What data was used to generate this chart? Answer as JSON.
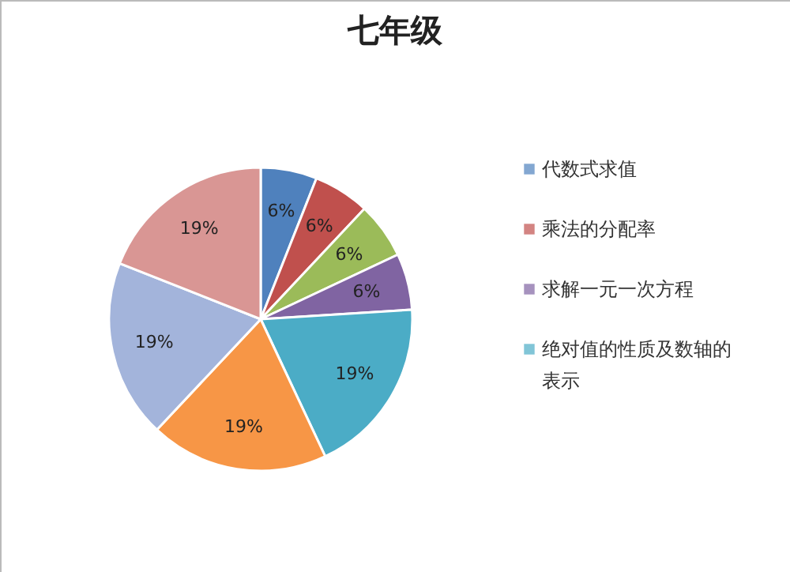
{
  "chart_data": {
    "type": "pie",
    "title": "七年级",
    "categories": [
      "代数式求值",
      "乘法的分配率",
      null,
      "求解一元一次方程",
      "绝对值的性质及数轴的表示",
      null,
      null,
      null
    ],
    "values": [
      6,
      6,
      6,
      6,
      19,
      19,
      19,
      19
    ],
    "colors": [
      "#4f81bd",
      "#c0504d",
      "#9bbb59",
      "#8064a2",
      "#4bacc6",
      "#f79646",
      "#a3b4db",
      "#d99694"
    ],
    "value_labels": [
      "6%",
      "6%",
      "6%",
      "6%",
      "19%",
      "19%",
      "19%",
      "19%"
    ],
    "legend": "right"
  }
}
